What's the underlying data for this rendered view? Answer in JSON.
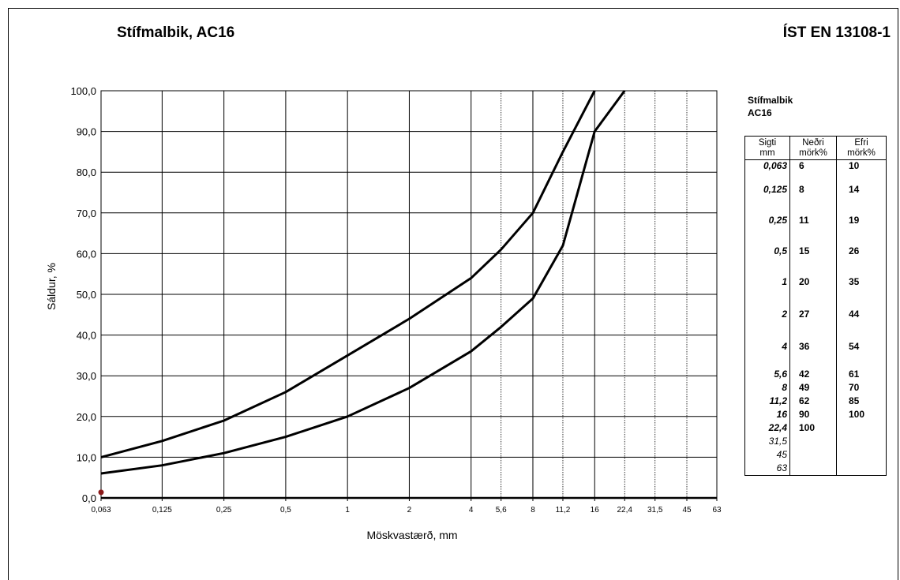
{
  "chart_data": {
    "type": "line",
    "title": "Stífmalbik, AC16",
    "standard": "ÍST EN 13108-1",
    "xlabel": "Möskvastærð,  mm",
    "ylabel": "Sáldur, %",
    "x_scale": "log",
    "x_ticks": [
      "0,063",
      "0,125",
      "0,25",
      "0,5",
      "1",
      "2",
      "4",
      "5,6",
      "8",
      "11,2",
      "16",
      "22,4",
      "31,5",
      "45",
      "63"
    ],
    "x_tick_values": [
      0.063,
      0.125,
      0.25,
      0.5,
      1,
      2,
      4,
      5.6,
      8,
      11.2,
      16,
      22.4,
      31.5,
      45,
      63
    ],
    "y_ticks": [
      "0,0",
      "10,0",
      "20,0",
      "30,0",
      "40,0",
      "50,0",
      "60,0",
      "70,0",
      "80,0",
      "90,0",
      "100,0"
    ],
    "ylim": [
      0,
      100
    ],
    "grid": true,
    "series": [
      {
        "x": [
          0.063,
          0.125,
          0.25,
          0.5,
          1,
          2,
          4,
          5.6,
          8,
          11.2,
          16,
          22.4
        ],
        "values": [
          6,
          8,
          11,
          15,
          20,
          27,
          36,
          42,
          49,
          62,
          90,
          100
        ]
      },
      {
        "x": [
          0.063,
          0.125,
          0.25,
          0.5,
          1,
          2,
          4,
          5.6,
          8,
          11.2,
          16
        ],
        "values": [
          10,
          14,
          19,
          26,
          35,
          44,
          54,
          61,
          70,
          85,
          100
        ]
      }
    ],
    "marker_point": {
      "x": 0.063,
      "y": 1,
      "color": "#8b1a1a"
    }
  },
  "legend": {
    "title_line1": "Stífmalbik",
    "title_line2": "AC16",
    "headers": {
      "sieve_1": "Sigti",
      "sieve_2": "mm",
      "low_1": "Neðri",
      "low_2": "mörk%",
      "high_1": "Efri",
      "high_2": "mörk%"
    },
    "rows": [
      {
        "sieve": "0,063",
        "low": "6",
        "high": "10",
        "bold": true
      },
      {
        "sieve": "0,125",
        "low": "8",
        "high": "14",
        "bold": true
      },
      {
        "sieve": "0,25",
        "low": "11",
        "high": "19",
        "bold": true
      },
      {
        "sieve": "0,5",
        "low": "15",
        "high": "26",
        "bold": true
      },
      {
        "sieve": "1",
        "low": "20",
        "high": "35",
        "bold": true
      },
      {
        "sieve": "2",
        "low": "27",
        "high": "44",
        "bold": true
      },
      {
        "sieve": "4",
        "low": "36",
        "high": "54",
        "bold": true
      },
      {
        "sieve": "5,6",
        "low": "42",
        "high": "61",
        "bold": true
      },
      {
        "sieve": "8",
        "low": "49",
        "high": "70",
        "bold": true
      },
      {
        "sieve": "11,2",
        "low": "62",
        "high": "85",
        "bold": true
      },
      {
        "sieve": "16",
        "low": "90",
        "high": "100",
        "bold": true
      },
      {
        "sieve": "22,4",
        "low": "100",
        "high": "",
        "bold": true
      },
      {
        "sieve": "31,5",
        "low": "",
        "high": "",
        "bold": false
      },
      {
        "sieve": "45",
        "low": "",
        "high": "",
        "bold": false
      },
      {
        "sieve": "63",
        "low": "",
        "high": "",
        "bold": false
      }
    ]
  }
}
